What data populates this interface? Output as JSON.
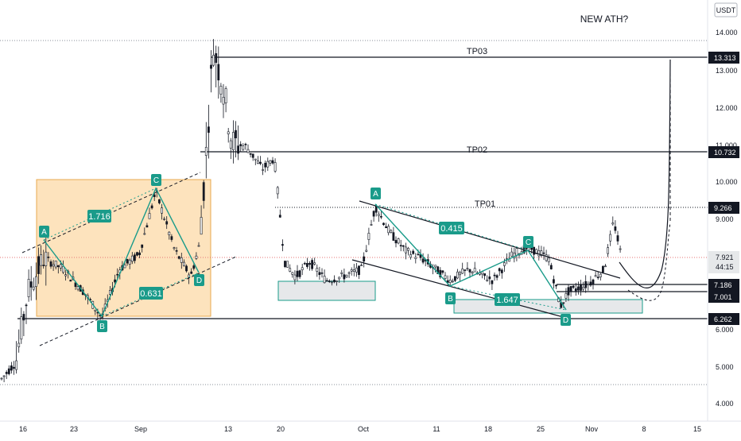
{
  "window": {
    "currency": "USDT",
    "annotation_text": "NEW ATH?"
  },
  "colors": {
    "background": "#ffffff",
    "candle": "#131722",
    "line": "#131722",
    "teal": "#1a9b8a",
    "orange_box": "#fde3bd",
    "orange_border": "#e8a94f",
    "gray_box": "#e6e8ea",
    "price_line": "#e57373",
    "label_bg": "#131722"
  },
  "chart_data": {
    "type": "candlestick",
    "title": "",
    "xlabel": "",
    "ylabel": "",
    "ylim": [
      3.2,
      14.6
    ],
    "y_ticks": [
      "4.000",
      "5.000",
      "6.000",
      "7.000",
      "8.000",
      "9.000",
      "10.000",
      "11.000",
      "12.000",
      "13.000",
      "14.000"
    ],
    "x_ticks": [
      {
        "label": "16",
        "x": "2021-08-16"
      },
      {
        "label": "23",
        "x": "2021-08-23"
      },
      {
        "label": "Sep",
        "x": "2021-09-01"
      },
      {
        "label": "13",
        "x": "2021-09-13"
      },
      {
        "label": "20",
        "x": "2021-09-20"
      },
      {
        "label": "Oct",
        "x": "2021-10-01"
      },
      {
        "label": "11",
        "x": "2021-10-11"
      },
      {
        "label": "18",
        "x": "2021-10-18"
      },
      {
        "label": "25",
        "x": "2021-10-25"
      },
      {
        "label": "Nov",
        "x": "2021-11-01"
      },
      {
        "label": "8",
        "x": "2021-11-08"
      },
      {
        "label": "15",
        "x": "2021-11-15"
      }
    ],
    "price_levels": [
      {
        "label": "TP03",
        "value": 13.313
      },
      {
        "label": "TP02",
        "value": 10.732
      },
      {
        "label": "TP01",
        "value": 9.266
      }
    ],
    "axis_badges": [
      "13.313",
      "10.732",
      "9.266",
      "7.921",
      "44:15",
      "7.186",
      "7.001",
      "6.262"
    ],
    "last_price": 7.921,
    "countdown": "44:15",
    "support_levels": [
      7.186,
      7.001,
      6.262
    ],
    "patterns": [
      {
        "name": "left",
        "points": [
          "A",
          "B",
          "C",
          "D"
        ],
        "ratios": [
          "1.716",
          "0.631"
        ]
      },
      {
        "name": "right",
        "points": [
          "A",
          "B",
          "C",
          "D"
        ],
        "ratios": [
          "0.415",
          "1.647"
        ]
      }
    ],
    "dotted_levels": [
      14.0,
      4.5
    ]
  }
}
